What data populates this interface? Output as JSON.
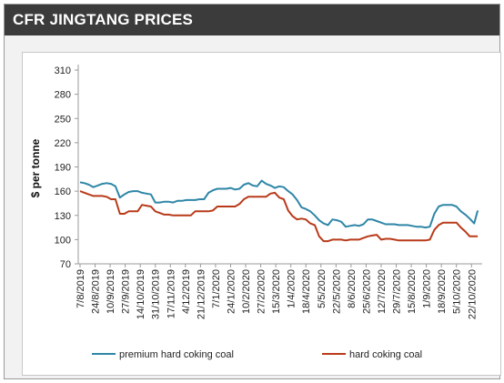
{
  "header": {
    "title": "CFR JINGTANG PRICES"
  },
  "colors": {
    "premium": "#2e86a6",
    "hard": "#b83a1a",
    "header_bg": "#3b3b3b"
  },
  "chart_data": {
    "type": "line",
    "title": "CFR JINGTANG PRICES",
    "ylabel": "$ per tonne",
    "xlabel": "",
    "ylim": [
      70,
      310
    ],
    "yticks": [
      70,
      100,
      130,
      160,
      190,
      220,
      250,
      280,
      310
    ],
    "xticks": [
      "7/8/2019",
      "24/8/2019",
      "10/9/2019",
      "27/9/2019",
      "14/10/2019",
      "31/10/2019",
      "17/11/2019",
      "4/12/2019",
      "21/12/2019",
      "7/1/2020",
      "24/1/2020",
      "10/2/2020",
      "27/2/2020",
      "15/3/2020",
      "1/4/2020",
      "18/4/2020",
      "5/5/2020",
      "22/5/2020",
      "8/6/2020",
      "25/6/2020",
      "12/7/2020",
      "29/7/2020",
      "15/8/2020",
      "1/9/2020",
      "18/9/2020",
      "5/10/2020",
      "22/10/2020"
    ],
    "grid": false,
    "legend_position": "bottom",
    "series": [
      {
        "name": "premium hard coking coal",
        "x": [
          "7/8/2019",
          "12/8/2019",
          "17/8/2019",
          "22/8/2019",
          "27/8/2019",
          "1/9/2019",
          "6/9/2019",
          "11/9/2019",
          "16/9/2019",
          "21/9/2019",
          "26/9/2019",
          "1/10/2019",
          "6/10/2019",
          "11/10/2019",
          "16/10/2019",
          "21/10/2019",
          "26/10/2019",
          "31/10/2019",
          "5/11/2019",
          "10/11/2019",
          "15/11/2019",
          "20/11/2019",
          "25/11/2019",
          "30/11/2019",
          "5/12/2019",
          "10/12/2019",
          "15/12/2019",
          "20/12/2019",
          "25/12/2019",
          "30/12/2019",
          "4/1/2020",
          "9/1/2020",
          "14/1/2020",
          "19/1/2020",
          "24/1/2020",
          "29/1/2020",
          "3/2/2020",
          "8/2/2020",
          "13/2/2020",
          "18/2/2020",
          "23/2/2020",
          "28/2/2020",
          "4/3/2020",
          "9/3/2020",
          "14/3/2020",
          "19/3/2020",
          "24/3/2020",
          "29/3/2020",
          "3/4/2020",
          "8/4/2020",
          "13/4/2020",
          "18/4/2020",
          "23/4/2020",
          "28/4/2020",
          "3/5/2020",
          "8/5/2020",
          "13/5/2020",
          "18/5/2020",
          "23/5/2020",
          "28/5/2020",
          "2/6/2020",
          "7/6/2020",
          "12/6/2020",
          "17/6/2020",
          "22/6/2020",
          "27/6/2020",
          "2/7/2020",
          "7/7/2020",
          "12/7/2020",
          "17/7/2020",
          "22/7/2020",
          "27/7/2020",
          "1/8/2020",
          "6/8/2020",
          "11/8/2020",
          "16/8/2020",
          "21/8/2020",
          "26/8/2020",
          "31/8/2020",
          "5/9/2020",
          "10/9/2020",
          "15/9/2020",
          "20/9/2020",
          "25/9/2020",
          "30/9/2020",
          "5/10/2020",
          "10/10/2020",
          "15/10/2020",
          "20/10/2020",
          "25/10/2020",
          "29/10/2020"
        ],
        "values": [
          171,
          170,
          168,
          165,
          167,
          169,
          170,
          169,
          166,
          152,
          156,
          159,
          160,
          160,
          158,
          157,
          156,
          146,
          146,
          147,
          147,
          146,
          148,
          148,
          149,
          149,
          149,
          150,
          150,
          158,
          161,
          163,
          163,
          163,
          164,
          162,
          163,
          168,
          170,
          167,
          166,
          173,
          169,
          167,
          164,
          166,
          165,
          160,
          156,
          149,
          140,
          138,
          135,
          130,
          124,
          120,
          118,
          125,
          124,
          122,
          116,
          117,
          118,
          117,
          119,
          125,
          125,
          123,
          121,
          119,
          119,
          119,
          118,
          118,
          118,
          117,
          116,
          116,
          115,
          116,
          132,
          141,
          143,
          143,
          143,
          141,
          135,
          131,
          126,
          120,
          136
        ]
      },
      {
        "name": "hard coking coal",
        "x": [
          "7/8/2019",
          "12/8/2019",
          "17/8/2019",
          "22/8/2019",
          "27/8/2019",
          "1/9/2019",
          "6/9/2019",
          "11/9/2019",
          "16/9/2019",
          "21/9/2019",
          "26/9/2019",
          "1/10/2019",
          "6/10/2019",
          "11/10/2019",
          "16/10/2019",
          "21/10/2019",
          "26/10/2019",
          "31/10/2019",
          "5/11/2019",
          "10/11/2019",
          "15/11/2019",
          "20/11/2019",
          "25/11/2019",
          "30/11/2019",
          "5/12/2019",
          "10/12/2019",
          "15/12/2019",
          "20/12/2019",
          "25/12/2019",
          "30/12/2019",
          "4/1/2020",
          "9/1/2020",
          "14/1/2020",
          "19/1/2020",
          "24/1/2020",
          "29/1/2020",
          "3/2/2020",
          "8/2/2020",
          "13/2/2020",
          "18/2/2020",
          "23/2/2020",
          "28/2/2020",
          "4/3/2020",
          "9/3/2020",
          "14/3/2020",
          "19/3/2020",
          "24/3/2020",
          "29/3/2020",
          "3/4/2020",
          "8/4/2020",
          "13/4/2020",
          "18/4/2020",
          "23/4/2020",
          "28/4/2020",
          "3/5/2020",
          "8/5/2020",
          "13/5/2020",
          "18/5/2020",
          "23/5/2020",
          "28/5/2020",
          "2/6/2020",
          "7/6/2020",
          "12/6/2020",
          "17/6/2020",
          "22/6/2020",
          "27/6/2020",
          "2/7/2020",
          "7/7/2020",
          "12/7/2020",
          "17/7/2020",
          "22/7/2020",
          "27/7/2020",
          "1/8/2020",
          "6/8/2020",
          "11/8/2020",
          "16/8/2020",
          "21/8/2020",
          "26/8/2020",
          "31/8/2020",
          "5/9/2020",
          "10/9/2020",
          "15/9/2020",
          "20/9/2020",
          "25/9/2020",
          "30/9/2020",
          "5/10/2020",
          "10/10/2020",
          "15/10/2020",
          "20/10/2020",
          "25/10/2020",
          "29/10/2020"
        ],
        "values": [
          160,
          158,
          156,
          154,
          154,
          154,
          153,
          150,
          150,
          132,
          132,
          135,
          135,
          135,
          143,
          142,
          141,
          135,
          133,
          131,
          131,
          130,
          130,
          130,
          130,
          130,
          135,
          135,
          135,
          135,
          136,
          141,
          141,
          141,
          141,
          141,
          144,
          150,
          153,
          153,
          153,
          153,
          153,
          157,
          158,
          152,
          150,
          136,
          129,
          125,
          126,
          125,
          120,
          118,
          104,
          98,
          98,
          100,
          100,
          100,
          99,
          100,
          100,
          100,
          102,
          104,
          105,
          106,
          100,
          101,
          101,
          100,
          99,
          99,
          99,
          99,
          99,
          99,
          99,
          100,
          112,
          118,
          121,
          121,
          121,
          121,
          115,
          110,
          104,
          104,
          104
        ]
      }
    ]
  }
}
